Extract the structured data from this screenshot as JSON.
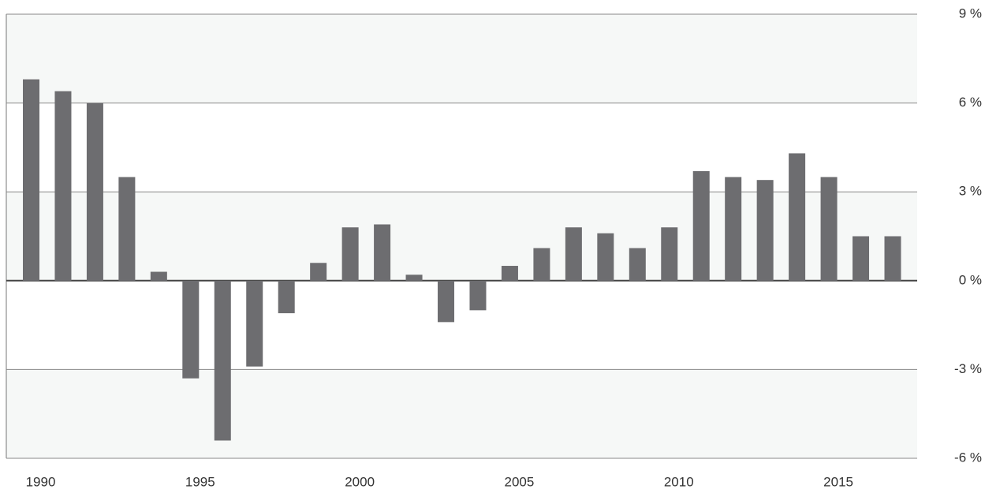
{
  "chart_data": {
    "type": "bar",
    "categories": [
      "1990",
      null,
      null,
      null,
      null,
      "1995",
      null,
      null,
      null,
      null,
      "2000",
      null,
      null,
      null,
      null,
      "2005",
      null,
      null,
      null,
      null,
      "2010",
      null,
      null,
      null,
      null,
      "2015",
      null,
      null
    ],
    "values": [
      6.8,
      6.4,
      6.0,
      3.5,
      0.3,
      -3.3,
      -5.4,
      -2.9,
      -1.1,
      0.6,
      1.8,
      1.9,
      0.2,
      -1.4,
      -1.0,
      0.5,
      1.1,
      1.8,
      1.6,
      1.1,
      1.8,
      3.7,
      3.5,
      3.4,
      4.3,
      3.5,
      1.5,
      1.5
    ],
    "color": "#6d6d70",
    "ylim": [
      -6,
      9
    ],
    "yticks": [
      {
        "value": -6,
        "label": "-6 %"
      },
      {
        "value": -3,
        "label": "-3 %"
      },
      {
        "value": 0,
        "label": "0 %"
      },
      {
        "value": 3,
        "label": "3 %"
      },
      {
        "value": 6,
        "label": "6 %"
      },
      {
        "value": 9,
        "label": "9 %"
      }
    ],
    "grid": true
  }
}
